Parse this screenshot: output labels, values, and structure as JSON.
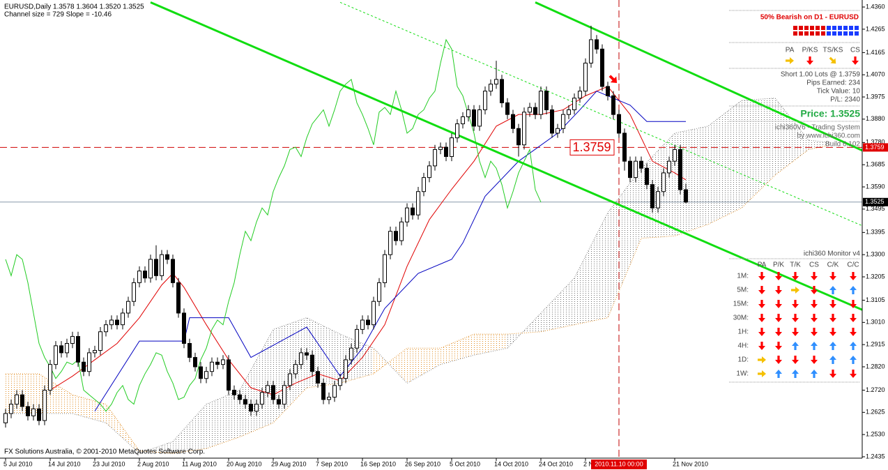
{
  "header": {
    "symbol_line": "EURUSD,Daily  1.3578 1.3604 1.3520 1.3525",
    "channel_line": "Channel size = 729 Slope = -10.46"
  },
  "footer": "FX Solutions Australia, © 2001-2010 MetaQuotes Software Corp.",
  "chart_data": {
    "type": "candlestick",
    "xlim": [
      -1,
      153.625
    ],
    "ylim": [
      1.2429,
      1.439
    ],
    "xticks": [
      {
        "value": 0,
        "label": "5 Jul 2010"
      },
      {
        "value": 8,
        "label": "14 Jul 2010"
      },
      {
        "value": 16,
        "label": "23 Jul 2010"
      },
      {
        "value": 24,
        "label": "2 Aug 2010"
      },
      {
        "value": 32,
        "label": "11 Aug 2010"
      },
      {
        "value": 40,
        "label": "20 Aug 2010"
      },
      {
        "value": 48,
        "label": "29 Aug 2010"
      },
      {
        "value": 56,
        "label": "7 Sep 2010"
      },
      {
        "value": 64,
        "label": "16 Sep 2010"
      },
      {
        "value": 72,
        "label": "26 Sep 2010"
      },
      {
        "value": 80,
        "label": "5 Oct 2010"
      },
      {
        "value": 88,
        "label": "14 Oct 2010"
      },
      {
        "value": 96,
        "label": "24 Oct 2010"
      },
      {
        "value": 104,
        "label": "2 Nov 2010"
      },
      {
        "value": 120,
        "label": "21 Nov 2010"
      }
    ],
    "yticks": [
      {
        "value": 1.436,
        "label": "1.4360"
      },
      {
        "value": 1.4265,
        "label": "1.4265"
      },
      {
        "value": 1.4165,
        "label": "1.4165"
      },
      {
        "value": 1.407,
        "label": "1.4070"
      },
      {
        "value": 1.3975,
        "label": "1.3975"
      },
      {
        "value": 1.388,
        "label": "1.3880"
      },
      {
        "value": 1.378,
        "label": "1.3780"
      },
      {
        "value": 1.3685,
        "label": "1.3685"
      },
      {
        "value": 1.359,
        "label": "1.3590"
      },
      {
        "value": 1.3495,
        "label": "1.3495"
      },
      {
        "value": 1.3395,
        "label": "1.3395"
      },
      {
        "value": 1.33,
        "label": "1.3300"
      },
      {
        "value": 1.3205,
        "label": "1.3205"
      },
      {
        "value": 1.3105,
        "label": "1.3105"
      },
      {
        "value": 1.301,
        "label": "1.3010"
      },
      {
        "value": 1.2915,
        "label": "1.2915"
      },
      {
        "value": 1.282,
        "label": "1.2820"
      },
      {
        "value": 1.272,
        "label": "1.2720"
      },
      {
        "value": 1.2625,
        "label": "1.2625"
      },
      {
        "value": 1.253,
        "label": "1.2530"
      },
      {
        "value": 1.2435,
        "label": "1.2435"
      }
    ],
    "up_color": "#ffffff",
    "down_color": "#000000",
    "open": [
      1.258,
      1.262,
      1.266,
      1.27,
      1.265,
      1.261,
      1.264,
      1.259,
      1.272,
      1.283,
      1.291,
      1.288,
      1.292,
      1.295,
      1.284,
      1.28,
      1.288,
      1.289,
      1.297,
      1.3,
      1.302,
      1.3,
      1.305,
      1.31,
      1.318,
      1.323,
      1.32,
      1.328,
      1.321,
      1.33,
      1.328,
      1.318,
      1.305,
      1.292,
      1.286,
      1.282,
      1.277,
      1.28,
      1.284,
      1.283,
      1.285,
      1.272,
      1.27,
      1.268,
      1.266,
      1.263,
      1.266,
      1.271,
      1.274,
      1.268,
      1.266,
      1.274,
      1.279,
      1.283,
      1.288,
      1.287,
      1.28,
      1.275,
      1.268,
      1.269,
      1.274,
      1.277,
      1.285,
      1.29,
      1.298,
      1.302,
      1.3,
      1.31,
      1.318,
      1.33,
      1.34,
      1.336,
      1.344,
      1.35,
      1.347,
      1.357,
      1.363,
      1.368,
      1.375,
      1.376,
      1.372,
      1.38,
      1.386,
      1.389,
      1.392,
      1.385,
      1.392,
      1.4,
      1.403,
      1.405,
      1.395,
      1.39,
      1.384,
      1.377,
      1.391,
      1.393,
      1.39,
      1.4,
      1.392,
      1.382,
      1.384,
      1.39,
      1.392,
      1.397,
      1.4,
      1.412,
      1.422,
      1.418,
      1.402,
      1.398,
      1.39,
      1.382,
      1.37,
      1.363,
      1.37,
      1.367,
      1.36,
      1.35,
      1.357,
      1.365,
      1.37,
      1.375,
      1.3578
    ],
    "high": [
      1.264,
      1.268,
      1.272,
      1.272,
      1.267,
      1.266,
      1.266,
      1.274,
      1.285,
      1.293,
      1.293,
      1.294,
      1.297,
      1.297,
      1.286,
      1.29,
      1.291,
      1.299,
      1.302,
      1.304,
      1.304,
      1.307,
      1.312,
      1.32,
      1.325,
      1.325,
      1.33,
      1.334,
      1.332,
      1.332,
      1.33,
      1.32,
      1.307,
      1.294,
      1.288,
      1.284,
      1.282,
      1.286,
      1.286,
      1.287,
      1.287,
      1.274,
      1.272,
      1.27,
      1.268,
      1.268,
      1.273,
      1.276,
      1.276,
      1.27,
      1.276,
      1.281,
      1.285,
      1.29,
      1.29,
      1.289,
      1.282,
      1.277,
      1.271,
      1.276,
      1.279,
      1.287,
      1.292,
      1.3,
      1.304,
      1.304,
      1.312,
      1.32,
      1.332,
      1.342,
      1.342,
      1.346,
      1.352,
      1.352,
      1.359,
      1.365,
      1.37,
      1.377,
      1.378,
      1.378,
      1.382,
      1.388,
      1.391,
      1.394,
      1.394,
      1.394,
      1.402,
      1.405,
      1.413,
      1.407,
      1.397,
      1.392,
      1.386,
      1.393,
      1.395,
      1.395,
      1.402,
      1.402,
      1.394,
      1.386,
      1.392,
      1.394,
      1.399,
      1.402,
      1.414,
      1.428,
      1.424,
      1.42,
      1.404,
      1.4,
      1.392,
      1.384,
      1.372,
      1.372,
      1.372,
      1.369,
      1.362,
      1.359,
      1.367,
      1.372,
      1.377,
      1.377,
      1.3604
    ],
    "low": [
      1.256,
      1.26,
      1.264,
      1.263,
      1.259,
      1.259,
      1.257,
      1.257,
      1.27,
      1.281,
      1.286,
      1.286,
      1.29,
      1.282,
      1.278,
      1.278,
      1.286,
      1.287,
      1.295,
      1.298,
      1.298,
      1.298,
      1.303,
      1.308,
      1.316,
      1.318,
      1.318,
      1.319,
      1.319,
      1.326,
      1.316,
      1.303,
      1.29,
      1.284,
      1.28,
      1.275,
      1.275,
      1.278,
      1.281,
      1.281,
      1.27,
      1.268,
      1.266,
      1.264,
      1.261,
      1.261,
      1.264,
      1.269,
      1.266,
      1.264,
      1.264,
      1.272,
      1.277,
      1.281,
      1.285,
      1.278,
      1.273,
      1.266,
      1.266,
      1.267,
      1.272,
      1.275,
      1.283,
      1.288,
      1.296,
      1.298,
      1.298,
      1.308,
      1.316,
      1.328,
      1.334,
      1.334,
      1.342,
      1.345,
      1.345,
      1.355,
      1.361,
      1.366,
      1.373,
      1.37,
      1.37,
      1.378,
      1.384,
      1.387,
      1.383,
      1.383,
      1.39,
      1.398,
      1.401,
      1.393,
      1.388,
      1.382,
      1.372,
      1.375,
      1.389,
      1.388,
      1.388,
      1.39,
      1.38,
      1.38,
      1.382,
      1.388,
      1.39,
      1.395,
      1.398,
      1.41,
      1.416,
      1.4,
      1.396,
      1.388,
      1.38,
      1.366,
      1.361,
      1.361,
      1.365,
      1.358,
      1.348,
      1.348,
      1.355,
      1.363,
      1.368,
      1.3558,
      1.352
    ],
    "close": [
      1.262,
      1.266,
      1.27,
      1.265,
      1.261,
      1.264,
      1.259,
      1.272,
      1.283,
      1.291,
      1.288,
      1.292,
      1.295,
      1.284,
      1.28,
      1.288,
      1.289,
      1.297,
      1.3,
      1.302,
      1.3,
      1.305,
      1.31,
      1.318,
      1.323,
      1.32,
      1.328,
      1.321,
      1.33,
      1.328,
      1.318,
      1.305,
      1.292,
      1.286,
      1.282,
      1.277,
      1.28,
      1.284,
      1.283,
      1.285,
      1.272,
      1.27,
      1.268,
      1.266,
      1.263,
      1.266,
      1.271,
      1.274,
      1.268,
      1.266,
      1.274,
      1.279,
      1.283,
      1.288,
      1.287,
      1.28,
      1.275,
      1.268,
      1.269,
      1.274,
      1.277,
      1.285,
      1.29,
      1.298,
      1.302,
      1.3,
      1.31,
      1.318,
      1.33,
      1.34,
      1.336,
      1.344,
      1.35,
      1.347,
      1.357,
      1.363,
      1.368,
      1.375,
      1.376,
      1.372,
      1.38,
      1.386,
      1.389,
      1.392,
      1.385,
      1.392,
      1.4,
      1.403,
      1.405,
      1.395,
      1.39,
      1.384,
      1.377,
      1.391,
      1.393,
      1.39,
      1.4,
      1.392,
      1.382,
      1.384,
      1.39,
      1.392,
      1.397,
      1.4,
      1.412,
      1.422,
      1.418,
      1.402,
      1.398,
      1.39,
      1.382,
      1.37,
      1.363,
      1.37,
      1.367,
      1.36,
      1.35,
      1.357,
      1.365,
      1.37,
      1.375,
      1.3578,
      1.3525
    ],
    "lines": [
      {
        "color": "#e00000",
        "x": [
          8,
          12,
          16,
          20,
          24,
          28,
          30,
          32,
          36,
          40,
          44,
          48,
          52,
          56,
          60,
          64,
          68,
          72,
          76,
          80,
          84,
          88,
          92,
          96,
          100,
          104,
          108,
          112,
          116,
          120,
          122
        ],
        "values": [
          1.272,
          1.278,
          1.285,
          1.292,
          1.303,
          1.317,
          1.322,
          1.316,
          1.3,
          1.285,
          1.273,
          1.27,
          1.275,
          1.279,
          1.276,
          1.286,
          1.3,
          1.325,
          1.345,
          1.358,
          1.37,
          1.385,
          1.39,
          1.39,
          1.392,
          1.398,
          1.402,
          1.39,
          1.37,
          1.365,
          1.362
        ]
      },
      {
        "color": "#0000c0",
        "x": [
          16,
          24,
          32,
          33,
          40,
          44,
          54,
          60,
          64,
          68,
          74,
          80,
          82,
          86,
          92,
          99,
          103,
          106,
          112,
          115,
          122
        ],
        "values": [
          1.263,
          1.293,
          1.293,
          1.303,
          1.303,
          1.286,
          1.299,
          1.278,
          1.29,
          1.307,
          1.322,
          1.328,
          1.335,
          1.355,
          1.37,
          1.382,
          1.392,
          1.4,
          1.394,
          1.387,
          1.387
        ]
      }
    ],
    "chikou": {
      "color": "#22cc22",
      "shift": -26
    },
    "cloud": {
      "x": [
        0,
        6,
        12,
        18,
        24,
        30,
        36,
        42,
        48,
        54,
        60,
        66,
        72,
        78,
        84,
        90,
        96,
        102,
        108,
        114,
        120,
        126,
        132,
        138,
        144,
        148
      ],
      "span_a": [
        1.262,
        1.262,
        1.262,
        1.258,
        1.245,
        1.25,
        1.266,
        1.272,
        1.298,
        1.303,
        1.296,
        1.29,
        1.275,
        1.283,
        1.287,
        1.29,
        1.305,
        1.32,
        1.348,
        1.367,
        1.382,
        1.385,
        1.396,
        1.397,
        1.379,
        1.378
      ],
      "span_b": [
        1.279,
        1.279,
        1.27,
        1.266,
        1.246,
        1.245,
        1.247,
        1.252,
        1.258,
        1.273,
        1.275,
        1.279,
        1.29,
        1.29,
        1.296,
        1.296,
        1.297,
        1.3,
        1.303,
        1.337,
        1.338,
        1.343,
        1.35,
        1.364,
        1.375,
        1.377
      ],
      "color_a": "#808080",
      "color_b": "#e08a1e"
    },
    "trend_lines": [
      {
        "color": "#11dd11",
        "width": 3,
        "dashed": false,
        "points": [
          [
            26,
            1.438
          ],
          [
            154,
            1.306
          ]
        ]
      },
      {
        "color": "#11dd11",
        "width": 3,
        "dashed": false,
        "points": [
          [
            95,
            1.438
          ],
          [
            154,
            1.3742
          ]
        ]
      },
      {
        "color": "#11dd11",
        "width": 1,
        "dashed": true,
        "points": [
          [
            60,
            1.438
          ],
          [
            154,
            1.342
          ]
        ]
      }
    ],
    "hlines": [
      {
        "value": 1.3759,
        "label": "1.3759",
        "color": "#d00000",
        "tag_color": "#e00000",
        "dashed": true
      },
      {
        "value": 1.3525,
        "label": "1.3525",
        "color": "#8899aa",
        "tag_color": "#000000",
        "dashed": false
      }
    ],
    "vline": {
      "value": 110,
      "label": "2010.11.10 00:00",
      "color": "#c00000"
    },
    "signal": {
      "x": 109,
      "value": 1.405,
      "color": "#ff0000"
    }
  },
  "panel": {
    "bias": "50% Bearish on D1 - EURUSD",
    "columns": [
      "PA",
      "P/KS",
      "TS/KS",
      "CS"
    ],
    "signals": [
      "right",
      "down",
      "downright",
      "down"
    ],
    "trade": [
      "Short 1.00 Lots @ 1.3759",
      "Pips Earned: 234",
      "Tick Value: 10",
      "P/L: 2340"
    ],
    "price": "Price: 1.3525",
    "system": [
      "ichi360V6 - Trading System",
      "by www.ichi360.com",
      "Build 6.102"
    ]
  },
  "monitor": {
    "title": "ichi360 Monitor v4",
    "columns": [
      "PA",
      "P/K",
      "T/K",
      "CS",
      "C/K",
      "C/C"
    ],
    "rows": [
      {
        "label": "1M:",
        "signals": [
          "down",
          "down",
          "down",
          "down",
          "down",
          "down"
        ]
      },
      {
        "label": "5M:",
        "signals": [
          "down",
          "down",
          "right",
          "down",
          "up",
          "up"
        ]
      },
      {
        "label": "15M:",
        "signals": [
          "down",
          "down",
          "down",
          "down",
          "down",
          "down"
        ]
      },
      {
        "label": "30M:",
        "signals": [
          "down",
          "down",
          "down",
          "down",
          "down",
          "down"
        ]
      },
      {
        "label": "1H:",
        "signals": [
          "down",
          "down",
          "down",
          "down",
          "down",
          "down"
        ]
      },
      {
        "label": "4H:",
        "signals": [
          "down",
          "down",
          "up",
          "up",
          "up",
          "up"
        ]
      },
      {
        "label": "1D:",
        "signals": [
          "right",
          "down",
          "down",
          "down",
          "up",
          "up"
        ]
      },
      {
        "label": "1W:",
        "signals": [
          "right",
          "up",
          "up",
          "up",
          "down",
          "down"
        ]
      }
    ]
  },
  "arrow_colors": {
    "down": "#ff0000",
    "up": "#2f8fff",
    "right": "#f5c000",
    "downright": "#f5c000"
  }
}
